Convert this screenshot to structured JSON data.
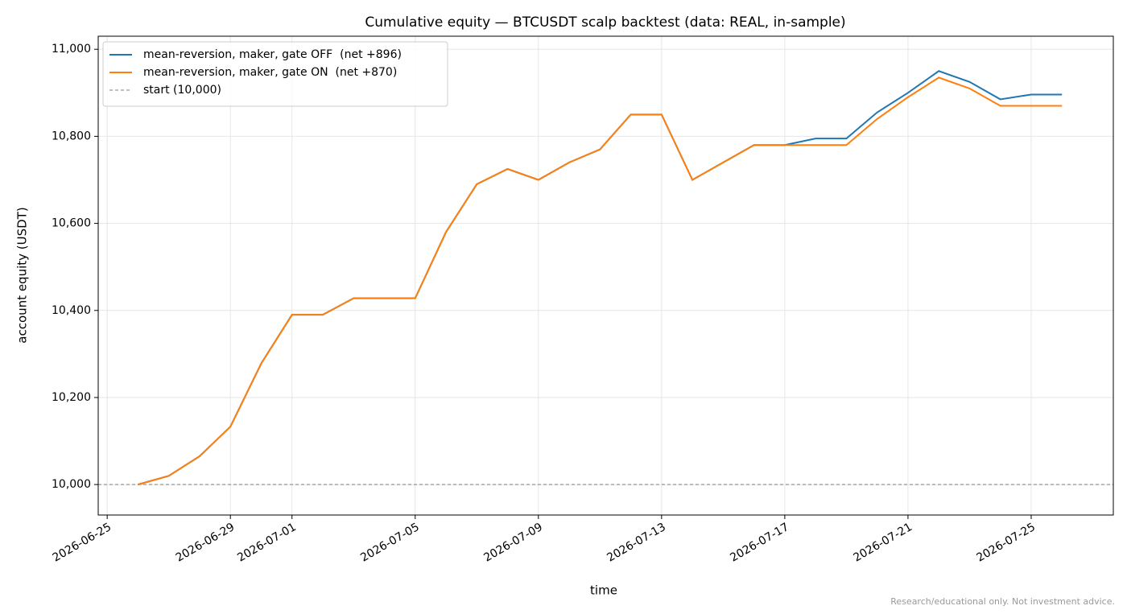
{
  "chart_data": {
    "type": "line",
    "title": "Cumulative equity — BTCUSDT scalp backtest (data: REAL, in-sample)",
    "x_label": "time",
    "y_label": "account equity (USDT)",
    "footnote": "Research/educational only. Not investment advice.",
    "x": [
      "2026-06-26",
      "2026-06-27",
      "2026-06-28",
      "2026-06-29",
      "2026-06-30",
      "2026-07-01",
      "2026-07-02",
      "2026-07-03",
      "2026-07-04",
      "2026-07-05",
      "2026-07-06",
      "2026-07-07",
      "2026-07-08",
      "2026-07-09",
      "2026-07-10",
      "2026-07-11",
      "2026-07-12",
      "2026-07-13",
      "2026-07-14",
      "2026-07-15",
      "2026-07-16",
      "2026-07-17",
      "2026-07-18",
      "2026-07-19",
      "2026-07-20",
      "2026-07-21",
      "2026-07-22",
      "2026-07-23",
      "2026-07-24",
      "2026-07-25",
      "2026-07-26"
    ],
    "series": [
      {
        "name": "mean-reversion, maker, gate OFF  (net +896)",
        "color": "#1f77b4",
        "values": [
          10000,
          10020,
          10065,
          10133,
          10278,
          10390,
          10390,
          10428,
          10428,
          10428,
          10580,
          10690,
          10725,
          10700,
          10740,
          10770,
          10850,
          10850,
          10700,
          10740,
          10780,
          10780,
          10795,
          10795,
          10855,
          10900,
          10950,
          10925,
          10885,
          10896,
          10896
        ]
      },
      {
        "name": "mean-reversion, maker, gate ON  (net +870)",
        "color": "#ff7f0e",
        "values": [
          10000,
          10020,
          10065,
          10133,
          10278,
          10390,
          10390,
          10428,
          10428,
          10428,
          10580,
          10690,
          10725,
          10700,
          10740,
          10770,
          10850,
          10850,
          10700,
          10740,
          10780,
          10780,
          10780,
          10780,
          10840,
          10890,
          10935,
          10910,
          10870,
          10870,
          10870
        ]
      }
    ],
    "reference_line": {
      "name": "start (10,000)",
      "value": 10000,
      "color": "#808080"
    },
    "xlim": [
      "2026-06-24T17:00Z",
      "2026-07-27T16:00Z"
    ],
    "xticks": [
      "2026-06-25",
      "2026-06-29",
      "2026-07-01",
      "2026-07-05",
      "2026-07-09",
      "2026-07-13",
      "2026-07-17",
      "2026-07-21",
      "2026-07-25"
    ],
    "ylim": [
      9930,
      11030
    ],
    "yticks": [
      {
        "value": 10000,
        "label": "10,000"
      },
      {
        "value": 10200,
        "label": "10,200"
      },
      {
        "value": 10400,
        "label": "10,400"
      },
      {
        "value": 10600,
        "label": "10,600"
      },
      {
        "value": 10800,
        "label": "10,800"
      },
      {
        "value": 11000,
        "label": "11,000"
      }
    ],
    "grid": true,
    "legend": "upper-left"
  }
}
